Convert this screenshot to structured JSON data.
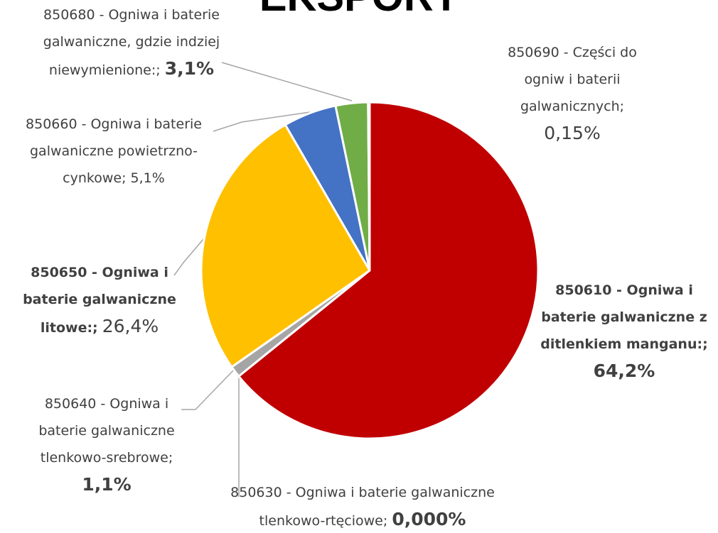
{
  "chart_data": {
    "type": "pie",
    "title": "EKSPORT",
    "categories": [
      "850610 - Ogniwa i baterie galwaniczne z ditlenkiem manganu:;",
      "850630 - Ogniwa i baterie galwaniczne tlenkowo-rtęciowe;",
      "850640 - Ogniwa i baterie galwaniczne tlenkowo-srebrowe;",
      "850650 - Ogniwa i baterie galwaniczne litowe:;",
      "850660 - Ogniwa i baterie galwaniczne powietrzno-cynkowe;",
      "850680 - Ogniwa i baterie galwaniczne, gdzie indziej niewymienione:;",
      "850690 - Części do ogniw i baterii galwanicznych;"
    ],
    "values": [
      64.2,
      0.0,
      1.1,
      26.4,
      5.1,
      3.1,
      0.15
    ],
    "value_labels": [
      "64,2%",
      "0,000%",
      "1,1%",
      "26,4%",
      "5,1%",
      "3,1%",
      "0,15%"
    ],
    "colors": [
      "#c00000",
      "#7f7f7f",
      "#a5a5a5",
      "#ffc000",
      "#4472c4",
      "#70ad47",
      "#264478"
    ]
  }
}
